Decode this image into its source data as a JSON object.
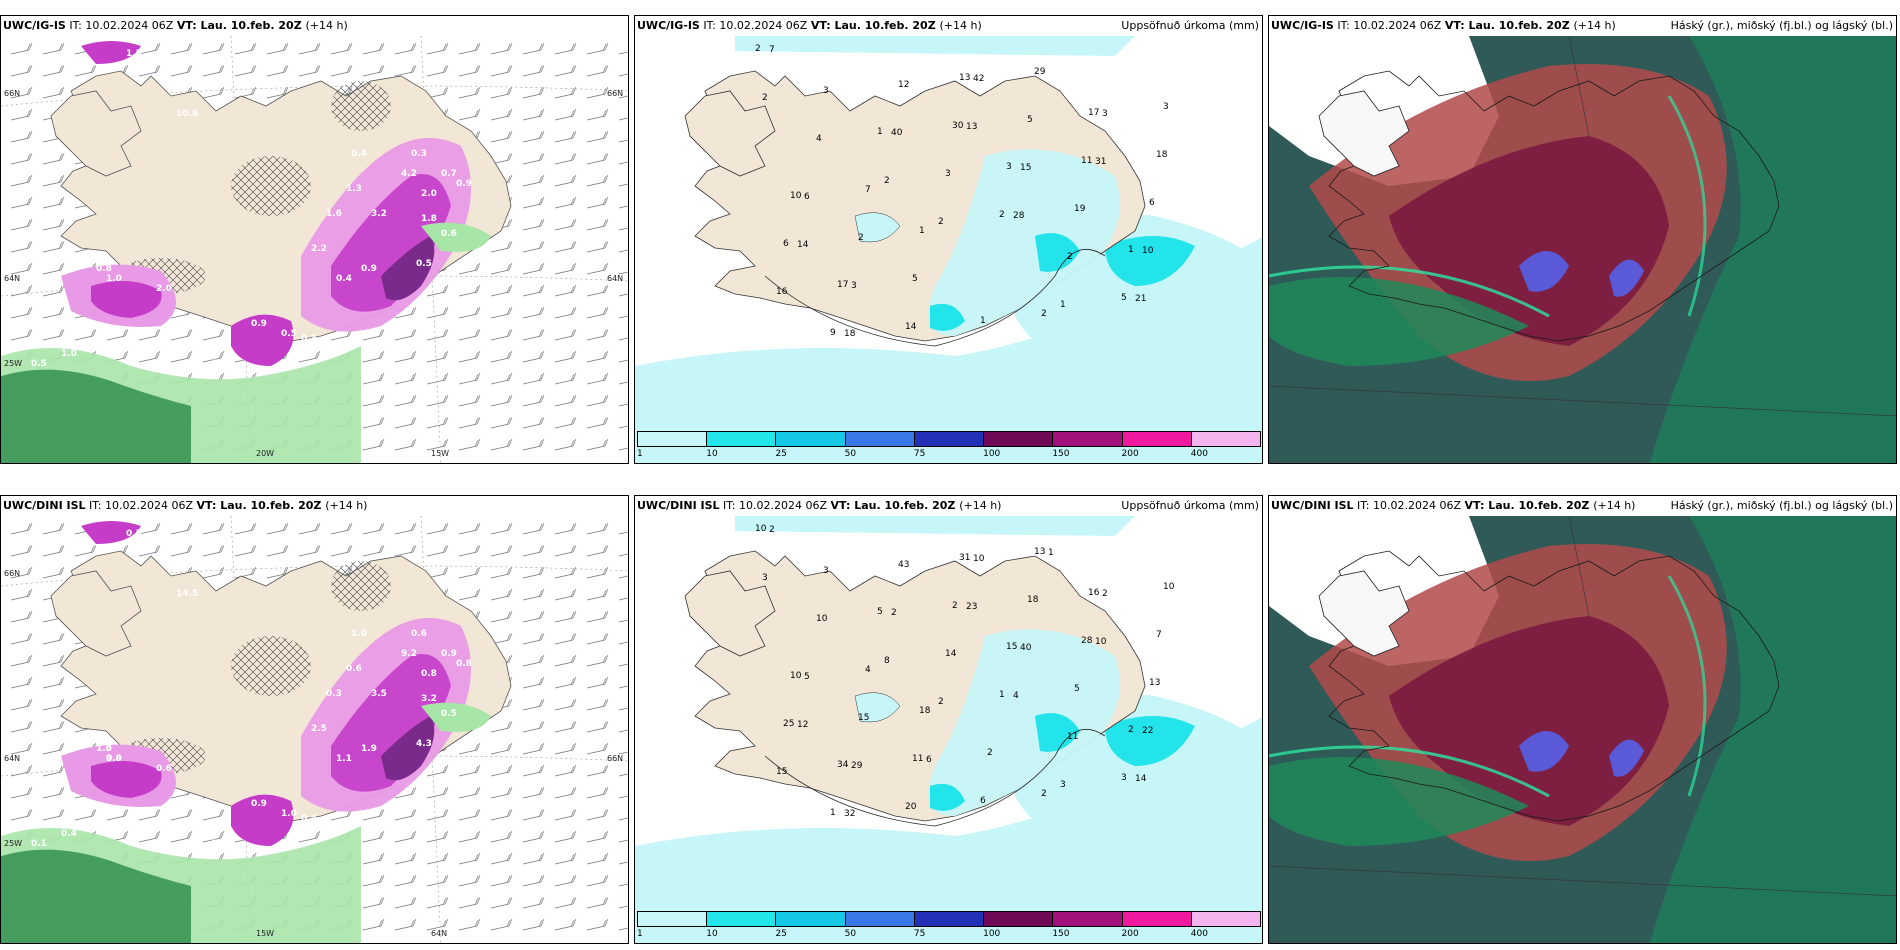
{
  "panels": [
    {
      "id": "p1",
      "model": "UWC/IG-IS",
      "it_label": "IT:",
      "it": "10.02.2024 06Z",
      "vt_label": "VT:",
      "vt": "Lau. 10.feb. 20Z",
      "lead": "(+14 h)",
      "right_title": "",
      "type": "snow",
      "values": [
        "0.8",
        "1.0",
        "2.0",
        "0.9",
        "0.5",
        "0.3",
        "4.0",
        "3.2",
        "1.3",
        "2.2",
        "1.6",
        "0.4",
        "0.6",
        "0.5",
        "1.8",
        "0.9",
        "10.6",
        "4.2",
        "2.0",
        "0.4",
        "1.5",
        "0.3",
        "0.7",
        "0.9",
        "1.0",
        "0.5"
      ],
      "axis_labels": [
        "66N",
        "64N",
        "25W",
        "20W",
        "15W",
        "64N",
        "66N"
      ]
    },
    {
      "id": "p2",
      "model": "UWC/IG-IS",
      "it_label": "IT:",
      "it": "10.02.2024 06Z",
      "vt_label": "VT:",
      "vt": "Lau. 10.feb. 20Z",
      "lead": "(+14 h)",
      "right_title": "Uppsöfnuð úrkoma (mm)",
      "type": "precip",
      "values": [
        "2",
        "4",
        "1",
        "2",
        "2",
        "1",
        "5",
        "2",
        "3",
        "2",
        "3",
        "3",
        "2",
        "1",
        "7",
        "9",
        "40",
        "30",
        "28",
        "19",
        "21",
        "16",
        "17",
        "12",
        "13",
        "15",
        "11",
        "10",
        "6",
        "18",
        "14",
        "13",
        "5",
        "17",
        "6",
        "10",
        "3",
        "5",
        "42",
        "29",
        "31",
        "18",
        "14",
        "2",
        "1",
        "1",
        "2",
        "3",
        "3",
        "6",
        "7"
      ]
    },
    {
      "id": "p3",
      "model": "UWC/IG-IS",
      "it_label": "IT:",
      "it": "10.02.2024 06Z",
      "vt_label": "VT:",
      "vt": "Lau. 10.feb. 20Z",
      "lead": "(+14 h)",
      "right_title": "Háský (gr.), miðský (fj.bl.) og lágský (bl.)",
      "type": "cloud"
    },
    {
      "id": "p4",
      "model": "UWC/DINI ISL",
      "it_label": "IT:",
      "it": "10.02.2024 06Z",
      "vt_label": "VT:",
      "vt": "Lau. 10.feb. 20Z",
      "lead": "(+14 h)",
      "right_title": "",
      "type": "snow",
      "values": [
        "1.5",
        "3.0",
        "0.6",
        "0.9",
        "1.0",
        "0.4",
        "0.3",
        "3.5",
        "0.6",
        "2.5",
        "0.3",
        "1.0",
        "0.5",
        "4.3",
        "3.2",
        "1.9",
        "14.5",
        "9.2",
        "0.8",
        "1.1",
        "0.5",
        "0.6",
        "0.9",
        "0.8",
        "0.4",
        "0.1",
        "1.0",
        "0.3"
      ],
      "axis_labels": [
        "66N",
        "64N",
        "25W",
        "15W",
        "64N",
        "66N"
      ]
    },
    {
      "id": "p5",
      "model": "UWC/DINI ISL",
      "it_label": "IT:",
      "it": "10.02.2024 06Z",
      "vt_label": "VT:",
      "vt": "Lau. 10.feb. 20Z",
      "lead": "(+14 h)",
      "right_title": "Uppsöfnuð úrkoma (mm)",
      "type": "precip",
      "values": [
        "10",
        "10",
        "5",
        "2",
        "1",
        "3",
        "3",
        "3",
        "3",
        "8",
        "14",
        "15",
        "11",
        "2",
        "2",
        "1",
        "2",
        "2",
        "4",
        "5",
        "14",
        "15",
        "34",
        "43",
        "31",
        "40",
        "28",
        "22",
        "25",
        "32",
        "20",
        "23",
        "18",
        "16",
        "13",
        "10",
        "29",
        "11",
        "10",
        "13",
        "10",
        "7",
        "12",
        "15",
        "18",
        "6",
        "2",
        "2",
        "10",
        "5",
        "4",
        "6",
        "2",
        "1"
      ]
    },
    {
      "id": "p6",
      "model": "UWC/DINI ISL",
      "it_label": "IT:",
      "it": "10.02.2024 06Z",
      "vt_label": "VT:",
      "vt": "Lau. 10.feb. 20Z",
      "lead": "(+14 h)",
      "right_title": "Háský (gr.), miðský (fj.bl.) og lágský (bl.)",
      "type": "cloud"
    }
  ],
  "legend": {
    "colors": [
      "#c9f6f8",
      "#22e6ea",
      "#14c8e6",
      "#3a78e8",
      "#2430b8",
      "#6e0a56",
      "#a2107a",
      "#f01aa0",
      "#f4b4ee"
    ],
    "ticks": [
      "1",
      "10",
      "25",
      "50",
      "75",
      "100",
      "150",
      "200",
      "400"
    ]
  },
  "colors": {
    "land": "#f2e6d6",
    "snow_light": "#e89ae6",
    "snow_mid": "#c43cc8",
    "snow_dark": "#7a2a8a",
    "rain_light": "#a8e6a8",
    "rain_dark": "#2a8a4a",
    "precip_light": "#c6f6f8",
    "precip_mid": "#22e4ea",
    "cloud_high": "#1f7a5a",
    "cloud_mid": "#b24a4a",
    "cloud_low": "#7a1a40"
  }
}
